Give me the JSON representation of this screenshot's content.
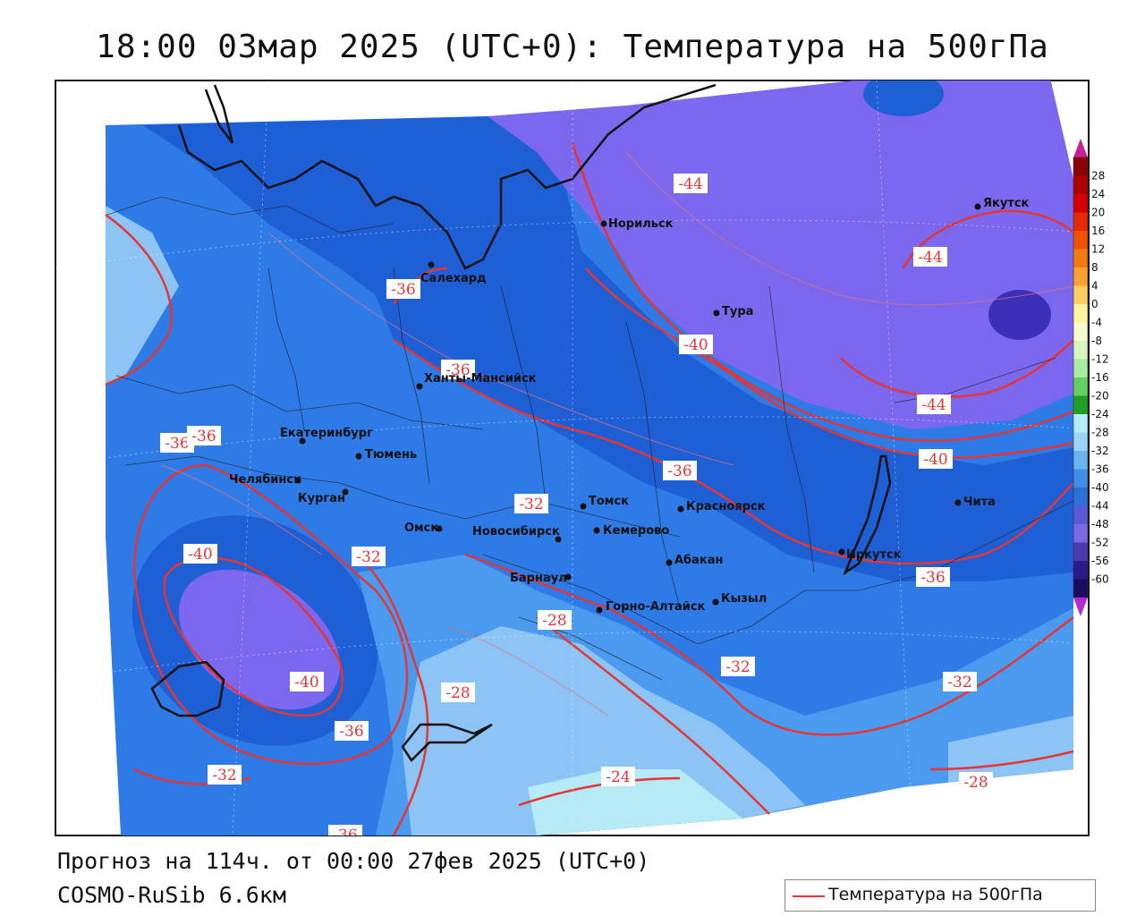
{
  "title": "18:00 03мар 2025 (UTC+0): Температура на 500гПа",
  "footer": {
    "forecast": "Прогноз на 114ч. от 00:00 27фев 2025 (UTC+0)",
    "model": "COSMO-RuSib 6.6км"
  },
  "legend": {
    "label": "Температура на 500гПа",
    "line_color": "#e53535"
  },
  "colorbar": {
    "ticks": [
      "28",
      "24",
      "20",
      "16",
      "12",
      "8",
      "4",
      "0",
      "-4",
      "-8",
      "-12",
      "-16",
      "-20",
      "-24",
      "-28",
      "-32",
      "-36",
      "-40",
      "-44",
      "-48",
      "-52",
      "-56",
      "-60"
    ],
    "colors": [
      "#8b0000",
      "#b00000",
      "#d40000",
      "#e82800",
      "#f05000",
      "#f57a10",
      "#f8a030",
      "#fbd060",
      "#fff3a0",
      "#f6fbd0",
      "#d8f5c0",
      "#a8ecA0",
      "#60d060",
      "#20a020",
      "#b4eef6",
      "#9ad4f5",
      "#6ab4f0",
      "#3f8ee8",
      "#2f6fd8",
      "#5a5ad8",
      "#7a6ae6",
      "#4a3ab0",
      "#2a1a8a",
      "#1a0a60"
    ],
    "top_color": "#c81e96",
    "bottom_color": "#b22ad0"
  },
  "cities": [
    {
      "name": "Салехард"
    },
    {
      "name": "Норильск"
    },
    {
      "name": "Якутск"
    },
    {
      "name": "Тура"
    },
    {
      "name": "Ханты-Мансийск"
    },
    {
      "name": "Екатеринбург"
    },
    {
      "name": "Тюмень"
    },
    {
      "name": "Челябинск"
    },
    {
      "name": "Курган"
    },
    {
      "name": "Омск"
    },
    {
      "name": "Новосибирск"
    },
    {
      "name": "Томск"
    },
    {
      "name": "Кемерово"
    },
    {
      "name": "Красноярск"
    },
    {
      "name": "Абакан"
    },
    {
      "name": "Барнаул"
    },
    {
      "name": "Горно-Алтайск"
    },
    {
      "name": "Кызыл"
    },
    {
      "name": "Иркутск"
    },
    {
      "name": "Чита"
    }
  ],
  "isotherm_labels": [
    "-44",
    "-44",
    "-44",
    "-40",
    "-40",
    "-36",
    "-36",
    "-36",
    "-36",
    "-36",
    "-40",
    "-40",
    "-36",
    "-36",
    "-32",
    "-32",
    "-32",
    "-32",
    "-28",
    "-28",
    "-24",
    "-28",
    "-32",
    "-36"
  ],
  "colors": {
    "deep_purple": "#3a2fb8",
    "purple": "#7b68ee",
    "dark_blue": "#1e5fd6",
    "blue": "#2e7be8",
    "mid_blue": "#4a9af0",
    "light_blue": "#8cc4f5",
    "pale_blue": "#b6eaf6",
    "isotherm": "#e53535"
  }
}
